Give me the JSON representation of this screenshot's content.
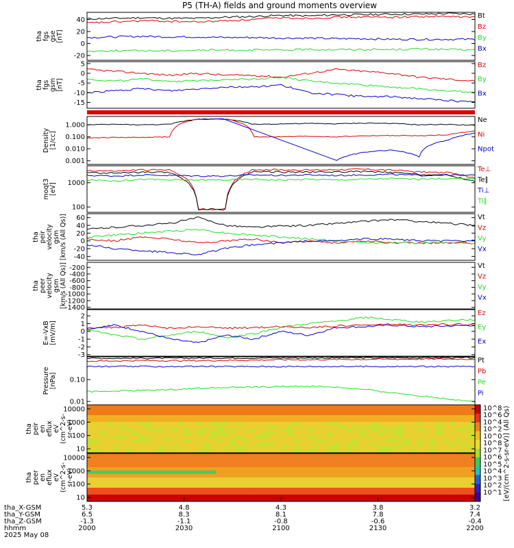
{
  "title": "P5 (TH-A) fields and ground moments overview",
  "colors": {
    "black": "#000000",
    "red": "#dd0000",
    "green": "#22dd22",
    "blue": "#0000cc"
  },
  "chart_data": [
    {
      "type": "line",
      "ylabel": [
        "tha",
        "fgs",
        "gse",
        "[nT]"
      ],
      "yticks": [
        "40",
        "20",
        "0",
        "-20"
      ],
      "ytick_values": [
        40,
        20,
        0,
        -20
      ],
      "ylim": [
        -28,
        52
      ],
      "legend": [
        "Bt",
        "Bz",
        "By",
        "Bx"
      ],
      "series": [
        {
          "name": "Bt",
          "values": [
            41,
            42,
            43,
            42,
            42,
            44,
            45,
            47,
            46,
            48,
            48,
            49,
            49,
            50,
            49
          ]
        },
        {
          "name": "Bz",
          "values": [
            34,
            36,
            38,
            37,
            36,
            38,
            40,
            43,
            42,
            44,
            44,
            44,
            45,
            45,
            44
          ]
        },
        {
          "name": "By",
          "values": [
            -13,
            -12,
            -12,
            -12,
            -11,
            -11,
            -11,
            -11,
            -10,
            -10,
            -10,
            -10,
            -9,
            -10,
            -11
          ]
        },
        {
          "name": "Bx",
          "values": [
            10,
            11,
            12,
            11,
            11,
            10,
            10,
            9,
            9,
            8,
            8,
            7,
            7,
            7,
            7
          ]
        }
      ]
    },
    {
      "type": "line",
      "ylabel": [
        "tha",
        "fgs",
        "gsm",
        "[nT]"
      ],
      "yticks": [
        "5",
        "0",
        "-5",
        "-10",
        "-15"
      ],
      "ytick_values": [
        5,
        0,
        -5,
        -10,
        -15
      ],
      "ylim": [
        -18,
        6
      ],
      "legend": [
        "Bz",
        "By",
        "Bx"
      ],
      "series": [
        {
          "name": "Bz",
          "values": [
            2,
            1,
            0,
            -1,
            0,
            -1,
            -1,
            -2,
            0,
            2,
            1,
            0,
            -2,
            -3,
            -4
          ]
        },
        {
          "name": "By",
          "values": [
            -3,
            -4,
            -3,
            -4,
            -4,
            -3,
            -3,
            -2,
            -4,
            -5,
            -6,
            -7,
            -8,
            -9,
            -10
          ]
        },
        {
          "name": "Bx",
          "values": [
            -10,
            -9,
            -8,
            -9,
            -8,
            -7,
            -7,
            -6,
            -10,
            -11,
            -12,
            -12,
            -13,
            -14,
            -15
          ]
        }
      ]
    },
    {
      "type": "line",
      "ylabel": [
        "Density",
        "[1/cc]"
      ],
      "yticks": [
        "1.000",
        "0.100",
        "0.010",
        "0.001"
      ],
      "ytick_values": [
        1,
        0.1,
        0.01,
        0.001
      ],
      "ylim": [
        0.0005,
        5
      ],
      "yscale": "log",
      "legend": [
        "Ne",
        "Ni",
        "Npot"
      ],
      "series": [
        {
          "name": "Ne",
          "values": [
            1.0,
            1.1,
            1.0,
            1.1,
            3.0,
            3.0,
            1.1,
            1.2,
            1.3,
            1.2,
            1.4,
            1.3,
            1.0,
            1.1,
            0.9
          ]
        },
        {
          "name": "Ni",
          "values": [
            0.08,
            0.09,
            0.09,
            0.1,
            3.0,
            3.0,
            0.1,
            0.1,
            0.11,
            0.1,
            0.12,
            0.13,
            0.12,
            0.15,
            0.3
          ]
        },
        {
          "name": "Npot",
          "values": [
            null,
            null,
            null,
            null,
            3.0,
            3.0,
            null,
            null,
            null,
            0.001,
            0.005,
            0.008,
            0.002,
            0.05,
            0.2
          ]
        }
      ]
    },
    {
      "type": "line",
      "ylabel": [
        "moqt3",
        "[eV]"
      ],
      "yticks": [
        "1000",
        "100"
      ],
      "ytick_values": [
        1000,
        100
      ],
      "ylim": [
        60,
        5000
      ],
      "yscale": "log",
      "legend": [
        "Te⊥",
        "Te∥",
        "Ti⊥",
        "Ti∥"
      ],
      "series": [
        {
          "name": "Te⊥",
          "values": [
            3200,
            3000,
            3400,
            3300,
            80,
            80,
            3500,
            3400,
            3300,
            3500,
            3600,
            3300,
            2800,
            2600,
            1500
          ]
        },
        {
          "name": "Te∥",
          "values": [
            2600,
            2500,
            2700,
            2600,
            80,
            80,
            2900,
            2800,
            2700,
            2800,
            2900,
            2600,
            2200,
            2000,
            1100
          ]
        },
        {
          "name": "Ti⊥",
          "values": [
            2000,
            1900,
            2100,
            2000,
            1900,
            1900,
            2100,
            2000,
            2100,
            2000,
            2100,
            2200,
            2000,
            2100,
            2000
          ]
        },
        {
          "name": "Ti∥",
          "values": [
            1300,
            1200,
            1400,
            1300,
            1300,
            1300,
            1400,
            1300,
            1400,
            1300,
            1400,
            1500,
            1400,
            1500,
            1400
          ]
        }
      ]
    },
    {
      "type": "line",
      "ylabel": [
        "tha",
        "peir",
        "velocity",
        "gsm",
        "[km/s (All Qs)]"
      ],
      "yticks": [
        "60",
        "40",
        "20",
        "0",
        "-20",
        "-40"
      ],
      "ytick_values": [
        60,
        40,
        20,
        0,
        -20,
        -40
      ],
      "ylim": [
        -50,
        70
      ],
      "legend": [
        "Vt",
        "Vz",
        "Vy",
        "Vx"
      ],
      "series": [
        {
          "name": "Vt",
          "values": [
            30,
            35,
            40,
            45,
            60,
            40,
            35,
            38,
            40,
            45,
            50,
            55,
            50,
            45,
            40
          ]
        },
        {
          "name": "Vz",
          "values": [
            5,
            0,
            10,
            5,
            -5,
            0,
            5,
            -5,
            0,
            -5,
            0,
            -5,
            -5,
            -5,
            -5
          ]
        },
        {
          "name": "Vy",
          "values": [
            10,
            15,
            20,
            25,
            30,
            20,
            15,
            10,
            5,
            0,
            -5,
            -5,
            -5,
            -5,
            -5
          ]
        },
        {
          "name": "Vx",
          "values": [
            -10,
            -20,
            -25,
            -30,
            -35,
            -20,
            -10,
            -5,
            0,
            0,
            5,
            5,
            0,
            0,
            0
          ]
        }
      ]
    },
    {
      "type": "line",
      "ylabel": [
        "tha",
        "peer",
        "velocity",
        "gsm",
        "[km/s (All Qs)]"
      ],
      "yticks": [
        "-200",
        "-400",
        "-600",
        "-800",
        "-1000",
        "-1200",
        "-1400"
      ],
      "ytick_values": [
        -200,
        -400,
        -600,
        -800,
        -1000,
        -1200,
        -1400
      ],
      "ylim": [
        -1450,
        -50
      ],
      "legend": [
        "Vt",
        "Vz",
        "Vy",
        "Vx"
      ],
      "series": []
    },
    {
      "type": "line",
      "ylabel": [
        "E=-VxB",
        "[mV/m]"
      ],
      "yticks": [
        "2",
        "1",
        "0",
        "-1",
        "-2",
        "-3"
      ],
      "ytick_values": [
        2,
        1,
        0,
        -1,
        -2,
        -3
      ],
      "ylim": [
        -3.2,
        2.8
      ],
      "legend": [
        "Ez",
        "Ey",
        "Ex"
      ],
      "series": [
        {
          "name": "Ez",
          "values": [
            0.5,
            0.5,
            0.8,
            0.4,
            0.6,
            0.4,
            0.5,
            0.6,
            0.5,
            0.7,
            0.8,
            0.9,
            0.8,
            0.9,
            0.9
          ]
        },
        {
          "name": "Ey",
          "values": [
            0.2,
            -0.5,
            -1.0,
            -0.5,
            0.0,
            -0.8,
            -0.3,
            0.5,
            1.0,
            1.3,
            1.8,
            1.5,
            1.2,
            1.4,
            1.5
          ]
        },
        {
          "name": "Ex",
          "values": [
            0.3,
            0.8,
            0.0,
            -1.0,
            -1.5,
            -0.5,
            -1.0,
            0.0,
            -0.5,
            0.5,
            0.6,
            0.8,
            0.6,
            0.7,
            0.8
          ]
        }
      ]
    },
    {
      "type": "line",
      "ylabel": [
        "Pressure",
        "[nPa]"
      ],
      "yticks": [
        "0.10",
        "0.01"
      ],
      "ytick_values": [
        0.1,
        0.01
      ],
      "ylim": [
        0.007,
        1.1
      ],
      "yscale": "log",
      "legend": [
        "Pt",
        "Pb",
        "Pe",
        "Pi"
      ],
      "series": [
        {
          "name": "Pt",
          "values": [
            0.95,
            0.95,
            0.96,
            0.96,
            0.97,
            0.97,
            0.98,
            0.98,
            0.98,
            0.99,
            0.99,
            1.0,
            1.0,
            1.0,
            1.0
          ]
        },
        {
          "name": "Pb",
          "values": [
            0.7,
            0.72,
            0.75,
            0.74,
            0.74,
            0.76,
            0.78,
            0.82,
            0.81,
            0.84,
            0.85,
            0.86,
            0.87,
            0.88,
            0.87
          ]
        },
        {
          "name": "Pe",
          "values": [
            0.028,
            0.03,
            0.032,
            0.035,
            0.04,
            0.045,
            0.045,
            0.048,
            0.05,
            0.045,
            0.035,
            0.025,
            0.018,
            0.013,
            0.01
          ]
        },
        {
          "name": "Pi",
          "values": [
            0.4,
            0.4,
            0.4,
            0.4,
            0.4,
            0.4,
            0.4,
            0.4,
            0.4,
            0.4,
            0.4,
            0.4,
            0.4,
            0.4,
            0.4
          ]
        }
      ]
    },
    {
      "type": "heatmap",
      "ylabel": [
        "tha",
        "peir",
        "en",
        "eflux",
        "eV",
        "(cm^2-s-",
        "sr-eV)"
      ],
      "yticks": [
        "10000",
        "1000",
        "100",
        "10"
      ],
      "ytick_values": [
        10000,
        1000,
        100,
        10
      ],
      "ylim": [
        5,
        20000
      ],
      "yscale": "log"
    },
    {
      "type": "heatmap",
      "ylabel": [
        "tha",
        "peer",
        "en",
        "eflux",
        "eV",
        "(cm^2-s-",
        "sr-eV)"
      ],
      "yticks": [
        "10000",
        "1000",
        "100",
        "10"
      ],
      "ytick_values": [
        10000,
        1000,
        100,
        10
      ],
      "ylim": [
        5,
        20000
      ],
      "yscale": "log"
    }
  ],
  "colorbar": {
    "label": "[eV/(cm^2-s-sr-eV)] (All Qs)",
    "ticks": [
      "10^8",
      "10^6",
      "10^4",
      "10^2",
      "10^0",
      "10^8",
      "10^7",
      "10^6",
      "10^5",
      "10^4",
      "10^3",
      "10^2",
      "10^1"
    ]
  },
  "xaxis": {
    "row_labels": [
      "tha_X-GSM",
      "tha_Y-GSM",
      "tha_Z-GSM",
      "hhmm",
      "2025 May 08"
    ],
    "ticks": [
      {
        "x": "5.3",
        "y": "6.5",
        "z": "-1.3",
        "time": "2000"
      },
      {
        "x": "4.8",
        "y": "8.3",
        "z": "-1.1",
        "time": "2030"
      },
      {
        "x": "4.3",
        "y": "8.1",
        "z": "-0.8",
        "time": "2100"
      },
      {
        "x": "3.8",
        "y": "7.8",
        "z": "-0.6",
        "time": "2130"
      },
      {
        "x": "3.2",
        "y": "7.4",
        "z": "-0.4",
        "time": "2200"
      }
    ]
  }
}
